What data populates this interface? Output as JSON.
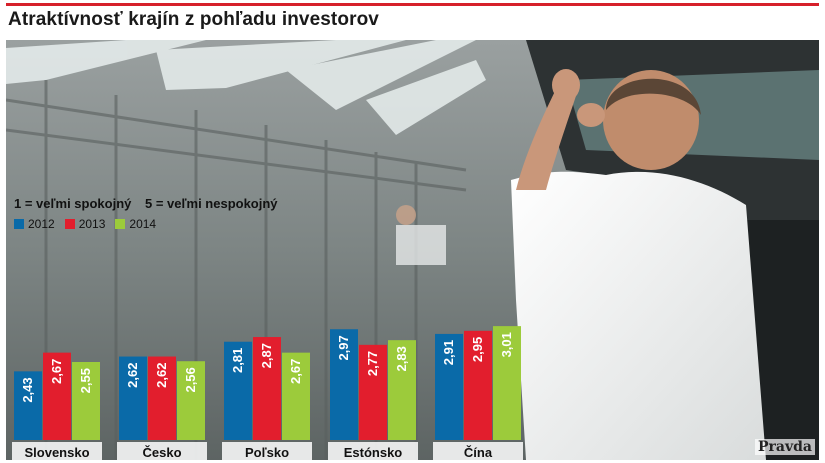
{
  "title": "Atraktívnosť krajín z pohľadu investorov",
  "scale_note": {
    "best": "1 = veľmi spokojný",
    "worst": "5 = veľmi nespokojný"
  },
  "watermark": "Pravda",
  "colors": {
    "accent": "#d6202a",
    "s2012": "#0a6aa8",
    "s2013": "#e21e2d",
    "s2014": "#9ccb3b"
  },
  "chart_data": {
    "type": "bar",
    "title": "Atraktívnosť krajín z pohľadu investorov",
    "xlabel": "",
    "ylabel": "",
    "categories": [
      "Slovensko",
      "Česko",
      "Poľsko",
      "Estónsko",
      "Čína"
    ],
    "series": [
      {
        "name": "2012",
        "values": [
          2.43,
          2.62,
          2.81,
          2.97,
          2.91
        ]
      },
      {
        "name": "2013",
        "values": [
          2.67,
          2.62,
          2.87,
          2.77,
          2.95
        ]
      },
      {
        "name": "2014",
        "values": [
          2.55,
          2.56,
          2.67,
          2.83,
          3.01
        ]
      }
    ],
    "ylim": [
      0,
      3.2
    ],
    "grid": false,
    "legend": "top-left"
  }
}
